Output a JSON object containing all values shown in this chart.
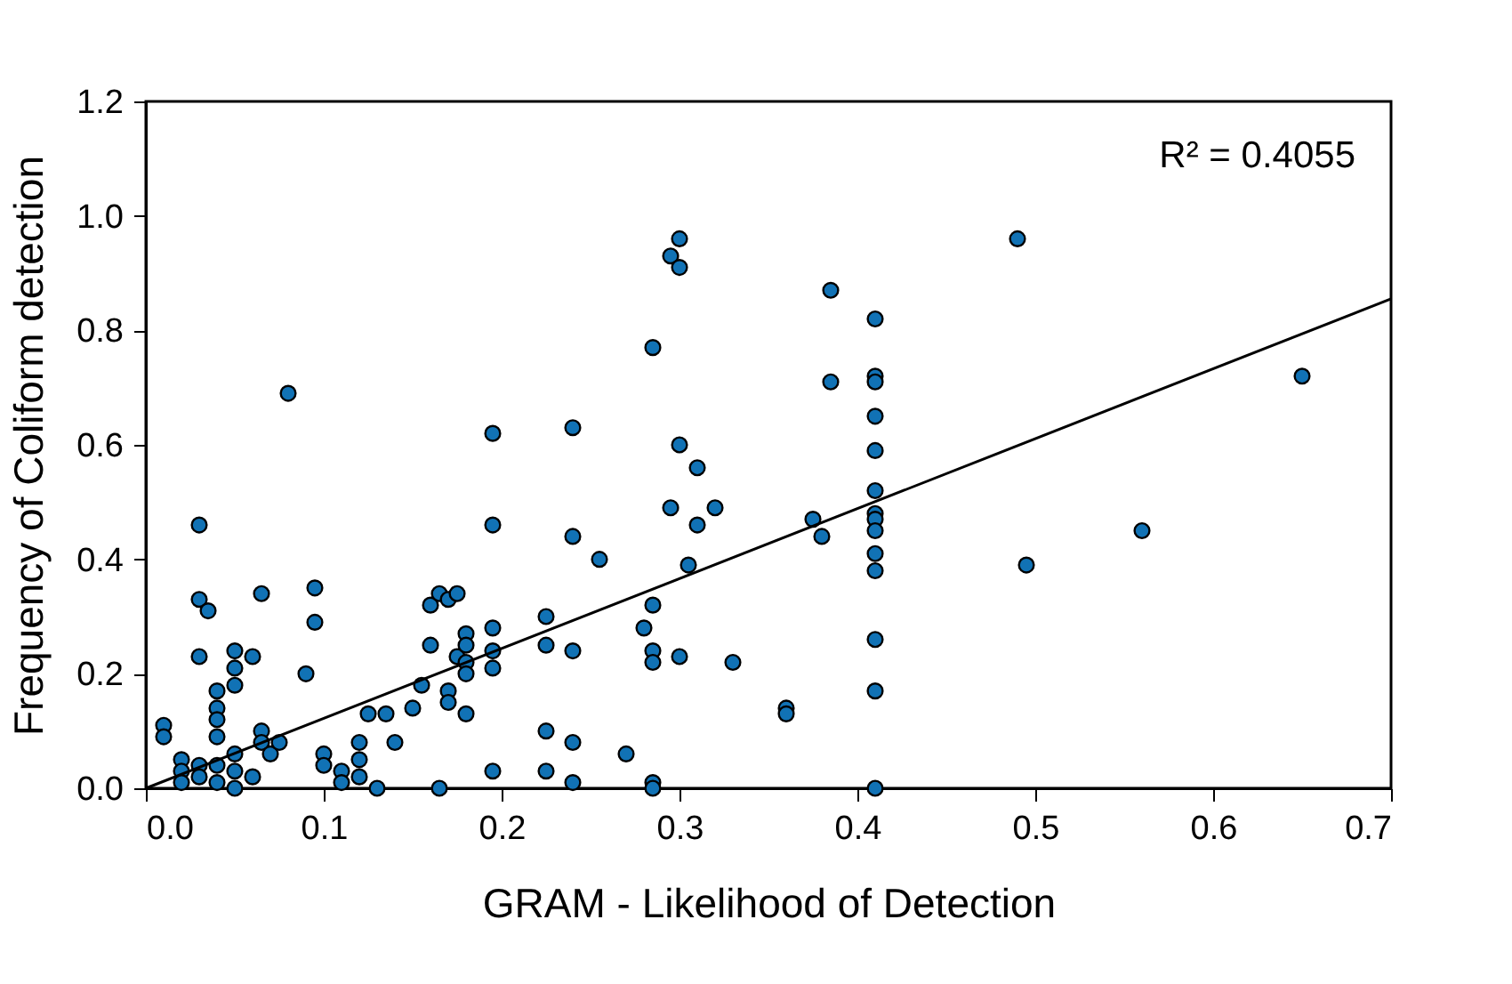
{
  "chart_data": {
    "type": "scatter",
    "xlabel": "GRAM - Likelihood of Detection",
    "ylabel": "Frequency of Coliform detection",
    "annotations": [
      "R² = 0.4055"
    ],
    "xlim": [
      0,
      0.7
    ],
    "ylim": [
      0,
      1.2
    ],
    "xticks": [
      {
        "value": 0,
        "label": "0.0"
      },
      0.1,
      0.2,
      0.3,
      0.4,
      0.5,
      0.6,
      0.7
    ],
    "yticks": [
      {
        "value": 0,
        "label": "0.0"
      },
      0.2,
      0.4,
      0.6,
      0.8,
      {
        "value": 1,
        "label": "1.0"
      },
      1.2
    ],
    "grid": false,
    "marker": "circle",
    "series": [
      {
        "color": "#1172b5",
        "x": [
          0.01,
          0.01,
          0.02,
          0.02,
          0.02,
          0.03,
          0.03,
          0.035,
          0.03,
          0.03,
          0.03,
          0.04,
          0.04,
          0.04,
          0.04,
          0.04,
          0.04,
          0.05,
          0.05,
          0.05,
          0.05,
          0.05,
          0.05,
          0.06,
          0.06,
          0.065,
          0.065,
          0.065,
          0.07,
          0.075,
          0.08,
          0.09,
          0.095,
          0.095,
          0.1,
          0.1,
          0.11,
          0.11,
          0.12,
          0.12,
          0.12,
          0.125,
          0.13,
          0.135,
          0.14,
          0.15,
          0.155,
          0.16,
          0.16,
          0.165,
          0.17,
          0.17,
          0.175,
          0.165,
          0.17,
          0.175,
          0.18,
          0.18,
          0.18,
          0.18,
          0.18,
          0.195,
          0.195,
          0.195,
          0.195,
          0.195,
          0.195,
          0.225,
          0.225,
          0.225,
          0.225,
          0.24,
          0.24,
          0.24,
          0.24,
          0.24,
          0.255,
          0.27,
          0.28,
          0.285,
          0.285,
          0.285,
          0.285,
          0.285,
          0.285,
          0.295,
          0.3,
          0.3,
          0.295,
          0.3,
          0.3,
          0.305,
          0.31,
          0.31,
          0.32,
          0.33,
          0.36,
          0.36,
          0.375,
          0.38,
          0.385,
          0.385,
          0.41,
          0.41,
          0.41,
          0.41,
          0.41,
          0.41,
          0.41,
          0.41,
          0.41,
          0.41,
          0.41,
          0.41,
          0.41,
          0.41,
          0.49,
          0.495,
          0.56,
          0.65
        ],
        "values": [
          0.11,
          0.09,
          0.05,
          0.03,
          0.01,
          0.46,
          0.33,
          0.31,
          0.23,
          0.04,
          0.02,
          0.17,
          0.14,
          0.12,
          0.09,
          0.04,
          0.01,
          0.24,
          0.21,
          0.18,
          0.06,
          0.03,
          0.0,
          0.23,
          0.02,
          0.34,
          0.1,
          0.08,
          0.06,
          0.08,
          0.69,
          0.2,
          0.35,
          0.29,
          0.06,
          0.04,
          0.03,
          0.01,
          0.08,
          0.05,
          0.02,
          0.13,
          0.0,
          0.13,
          0.08,
          0.14,
          0.18,
          0.32,
          0.25,
          0.34,
          0.17,
          0.33,
          0.34,
          0.0,
          0.15,
          0.23,
          0.27,
          0.25,
          0.22,
          0.2,
          0.13,
          0.62,
          0.46,
          0.28,
          0.24,
          0.21,
          0.03,
          0.3,
          0.25,
          0.1,
          0.03,
          0.63,
          0.44,
          0.24,
          0.08,
          0.01,
          0.4,
          0.06,
          0.28,
          0.77,
          0.32,
          0.24,
          0.22,
          0.01,
          0.0,
          0.93,
          0.96,
          0.91,
          0.49,
          0.6,
          0.23,
          0.39,
          0.56,
          0.46,
          0.49,
          0.22,
          0.14,
          0.13,
          0.47,
          0.44,
          0.87,
          0.71,
          0.82,
          0.72,
          0.71,
          0.65,
          0.59,
          0.52,
          0.48,
          0.47,
          0.45,
          0.41,
          0.38,
          0.26,
          0.17,
          0.0,
          0.96,
          0.39,
          0.45,
          0.72
        ]
      },
      {
        "type": "line",
        "marker": "none",
        "line_style": "solid",
        "color": "#000000",
        "x": [
          0,
          0.7
        ],
        "values": [
          0,
          0.855
        ]
      }
    ]
  }
}
